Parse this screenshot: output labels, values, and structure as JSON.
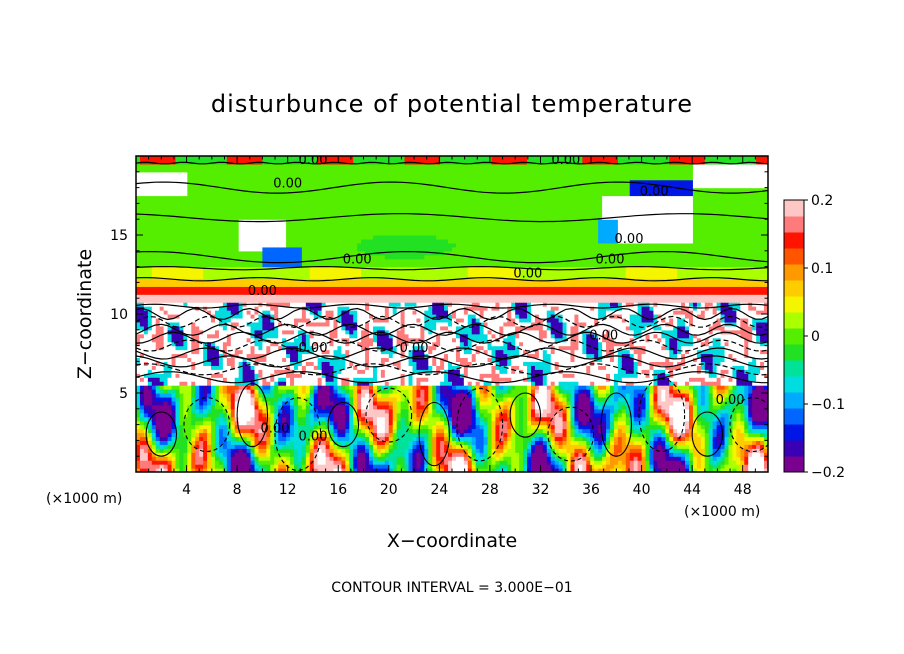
{
  "chart_data": {
    "type": "heatmap",
    "title": "disturbunce of potential temperature",
    "xlabel": "X−coordinate",
    "ylabel": "Z−coordinate",
    "x_unit": "(×1000 m)",
    "z_unit": "(×1000 m)",
    "xlim": [
      0,
      50
    ],
    "ylim": [
      0,
      20
    ],
    "x_ticks": [
      4,
      8,
      12,
      16,
      20,
      24,
      28,
      32,
      36,
      40,
      44,
      48
    ],
    "y_ticks": [
      5,
      10,
      15
    ],
    "contour_interval_text": "CONTOUR INTERVAL = 3.000E−01",
    "contour_label": "0.00",
    "contour_label_positions": [
      {
        "x": 14.0,
        "z": 19.5
      },
      {
        "x": 34.0,
        "z": 19.5
      },
      {
        "x": 12.0,
        "z": 18.0
      },
      {
        "x": 41.0,
        "z": 17.5
      },
      {
        "x": 39.0,
        "z": 14.5
      },
      {
        "x": 17.5,
        "z": 13.2
      },
      {
        "x": 37.5,
        "z": 13.2
      },
      {
        "x": 31.0,
        "z": 12.3
      },
      {
        "x": 10.0,
        "z": 11.2
      },
      {
        "x": 14.0,
        "z": 7.6
      },
      {
        "x": 22.0,
        "z": 7.6
      },
      {
        "x": 37.0,
        "z": 8.4
      },
      {
        "x": 47.0,
        "z": 4.3
      },
      {
        "x": 11.0,
        "z": 2.5
      },
      {
        "x": 14.0,
        "z": 2.0
      }
    ],
    "colorbar": {
      "min": -0.2,
      "max": 0.2,
      "tick_values": [
        0.2,
        0.1,
        0,
        -0.1,
        -0.2
      ],
      "tick_labels": [
        "0.2",
        "0.1",
        "0",
        "−0.1",
        "−0.2"
      ],
      "colors": [
        "#7a008f",
        "#3a00b4",
        "#0016e6",
        "#0066ff",
        "#00aaff",
        "#00dde0",
        "#00e29a",
        "#22e022",
        "#55ee00",
        "#aaff00",
        "#f5f500",
        "#ffcc00",
        "#ff9900",
        "#ff5500",
        "#ff1400",
        "#ff7a7a",
        "#ffc6c6"
      ]
    },
    "field_description_bands": [
      {
        "z_from": 19.5,
        "z_to": 20,
        "value": 0.0
      },
      {
        "z_from": 17.5,
        "z_to": 19.5,
        "value": 0.02
      },
      {
        "z_from": 13,
        "z_to": 17.5,
        "value": 0.0
      },
      {
        "z_from": 12.2,
        "z_to": 13,
        "value": 0.03
      },
      {
        "z_from": 10.8,
        "z_to": 12.2,
        "value": 0.12
      },
      {
        "z_from": 10.0,
        "z_to": 10.8,
        "value": 0.25
      },
      {
        "z_from": 5.5,
        "z_to": 10.0,
        "value": 0.3
      },
      {
        "z_from": 0,
        "z_to": 5.5,
        "value": 0.0
      }
    ]
  }
}
